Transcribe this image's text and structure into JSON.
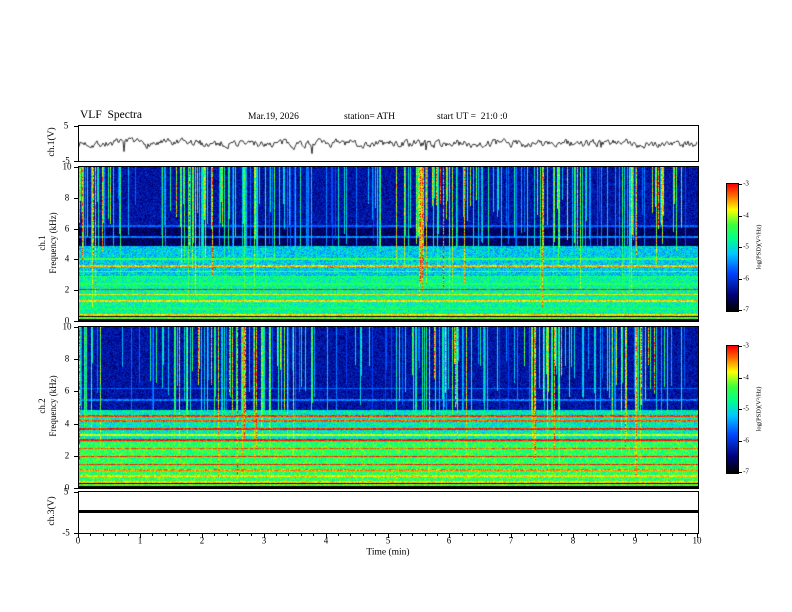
{
  "background_color": "#ffffff",
  "header": {
    "title": "VLF  Spectra",
    "date": "Mar.19, 2026",
    "station": "station= ATH",
    "start_ut": "start UT =  21:0 :0"
  },
  "x_axis": {
    "label": "Time (min)",
    "range": [
      0,
      10
    ],
    "major_ticks": [
      0,
      1,
      2,
      3,
      4,
      5,
      6,
      7,
      8,
      9,
      10
    ]
  },
  "colorbar": {
    "label": "log(PSD)(V²/Hz)",
    "ticks": [
      -3,
      -4,
      -5,
      -6,
      -7
    ],
    "value_range": [
      -7,
      -3
    ],
    "colormap_stops": [
      "#000000",
      "#000078",
      "#0046ff",
      "#00c8ff",
      "#00ff8c",
      "#3cff3c",
      "#ffff00",
      "#ff7800",
      "#ff0000"
    ]
  },
  "chart_data": [
    {
      "type": "line",
      "panel": "ch1-waveform",
      "ylabel": "ch.1(V)",
      "ylim": [
        -5,
        5
      ],
      "yticks": [
        5,
        -5
      ],
      "xlim": [
        0,
        10
      ],
      "series": [
        {
          "name": "ch.1 voltage",
          "summary": "continuous black noise-like trace centred on 0 V, typical amplitude about ±1.5 V with sporadic narrow spikes to roughly ±3 V across the full 0–10 min record"
        }
      ]
    },
    {
      "type": "heatmap",
      "panel": "ch1-spectrogram",
      "ylabel_line1": "ch.1",
      "ylabel_line2": "Frequency (kHz)",
      "ylim": [
        0,
        10
      ],
      "yticks": [
        0,
        2,
        4,
        6,
        8,
        10
      ],
      "xlim": [
        0,
        10
      ],
      "value_range": [
        -7,
        -3
      ],
      "summary": "dark-blue background above ~5 kHz pierced by dense vertical green/cyan sferic streaks in clusters; darker navy band 5–6 kHz; cyan-green band 0.5–3 kHz crossed by many yellow/orange/red horizontal harmonic lines up to ~4.3 kHz; black band below ~0.4 kHz containing a thin green line near 0.2 kHz"
    },
    {
      "type": "heatmap",
      "panel": "ch2-spectrogram",
      "ylabel_line1": "ch.2",
      "ylabel_line2": "Frequency (kHz)",
      "ylim": [
        0,
        10
      ],
      "yticks": [
        0,
        2,
        4,
        6,
        8,
        10
      ],
      "xlim": [
        0,
        10
      ],
      "value_range": [
        -7,
        -3
      ],
      "summary": "same vertical sferic streak pattern as ch.1 above 5 kHz; brighter green 0.5–4.5 kHz region with stronger yellow and red horizontal harmonic lines; black band below ~0.4 kHz with a bright yellow-green line at the bottom edge"
    },
    {
      "type": "line",
      "panel": "ch3-waveform",
      "ylabel": "ch.3(V)",
      "ylim": [
        -5,
        5
      ],
      "yticks": [
        5,
        -5
      ],
      "xlim": [
        0,
        10
      ],
      "series": [
        {
          "name": "ch.3 voltage",
          "summary": "flat thick black line at 0 V for the whole record"
        }
      ]
    }
  ]
}
